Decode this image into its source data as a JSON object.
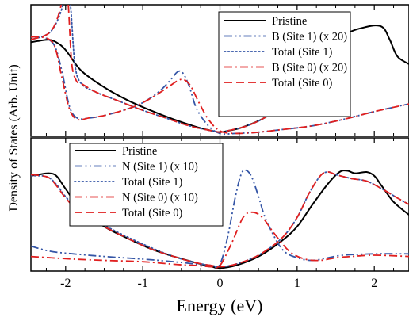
{
  "chart_data": [
    {
      "type": "line",
      "panel": "top",
      "xlim": [
        -2.45,
        2.45
      ],
      "ylim": [
        0,
        1
      ],
      "legend_position": "top-right",
      "series": [
        {
          "name": "Pristine",
          "color": "#000000",
          "dash": "solid",
          "x": [
            -2.45,
            -2.35,
            -2.22,
            -2.12,
            -2.0,
            -1.8,
            -1.5,
            -1.2,
            -0.9,
            -0.6,
            -0.3,
            -0.1,
            0.0,
            0.1,
            0.3,
            0.6,
            0.9,
            1.2,
            1.3,
            1.6,
            1.9,
            2.1,
            2.2,
            2.3,
            2.45
          ],
          "y": [
            0.72,
            0.73,
            0.74,
            0.72,
            0.66,
            0.5,
            0.37,
            0.27,
            0.19,
            0.12,
            0.06,
            0.03,
            0.02,
            0.03,
            0.06,
            0.14,
            0.28,
            0.48,
            0.57,
            0.77,
            0.84,
            0.84,
            0.74,
            0.61,
            0.55
          ]
        },
        {
          "name": "B (Site 1) (x 20)",
          "color": "#3455a6",
          "dash": "dashdotdot",
          "x": [
            -2.45,
            -2.3,
            -2.15,
            -2.05,
            -1.95,
            -1.85,
            -1.7,
            -1.5,
            -1.2,
            -1.0,
            -0.8,
            -0.65,
            -0.55,
            -0.48,
            -0.4,
            -0.3,
            -0.15,
            0.0,
            0.2,
            0.5,
            0.8,
            1.2,
            1.6,
            2.0,
            2.45
          ],
          "y": [
            0.76,
            0.76,
            0.7,
            0.5,
            0.22,
            0.13,
            0.13,
            0.15,
            0.2,
            0.25,
            0.33,
            0.42,
            0.49,
            0.48,
            0.38,
            0.2,
            0.07,
            0.01,
            0.01,
            0.02,
            0.04,
            0.07,
            0.12,
            0.18,
            0.24
          ]
        },
        {
          "name": "Total (Site 1)",
          "color": "#3455a6",
          "dash": "dotted",
          "x": [
            -2.45,
            -2.2,
            -2.05,
            -2.0,
            -1.97,
            -1.93,
            -1.88,
            -1.8,
            -1.6,
            -1.3,
            -1.0,
            -0.7,
            -0.4,
            -0.1,
            0.0,
            0.1,
            0.4,
            0.7,
            1.0,
            1.2
          ],
          "y": [
            0.74,
            0.8,
            0.98,
            1.2,
            1.2,
            0.96,
            0.55,
            0.4,
            0.33,
            0.26,
            0.19,
            0.13,
            0.07,
            0.03,
            0.02,
            0.03,
            0.08,
            0.18,
            0.34,
            0.48
          ]
        },
        {
          "name": "B (Site 0) (x 20)",
          "color": "#e01f1f",
          "dash": "dashdot",
          "x": [
            -2.45,
            -2.3,
            -2.15,
            -2.05,
            -1.95,
            -1.85,
            -1.7,
            -1.5,
            -1.2,
            -1.0,
            -0.8,
            -0.65,
            -0.55,
            -0.47,
            -0.38,
            -0.28,
            -0.15,
            0.0,
            0.2,
            0.5,
            0.8,
            1.2,
            1.6,
            2.0,
            2.45
          ],
          "y": [
            0.76,
            0.76,
            0.7,
            0.45,
            0.2,
            0.12,
            0.13,
            0.15,
            0.2,
            0.25,
            0.32,
            0.38,
            0.42,
            0.43,
            0.38,
            0.26,
            0.12,
            0.03,
            0.01,
            0.02,
            0.04,
            0.07,
            0.12,
            0.18,
            0.24
          ]
        },
        {
          "name": "Total (Site 0)",
          "color": "#e01f1f",
          "dash": "dashed",
          "x": [
            -2.45,
            -2.2,
            -2.07,
            -2.02,
            -1.99,
            -1.96,
            -1.92,
            -1.86,
            -1.8,
            -1.6,
            -1.3,
            -1.0,
            -0.7,
            -0.4,
            -0.1,
            0.0,
            0.1,
            0.4,
            0.7,
            1.0,
            1.2
          ],
          "y": [
            0.74,
            0.8,
            0.98,
            1.2,
            1.2,
            0.96,
            0.55,
            0.42,
            0.4,
            0.33,
            0.26,
            0.19,
            0.13,
            0.07,
            0.03,
            0.02,
            0.03,
            0.08,
            0.18,
            0.34,
            0.48
          ]
        }
      ]
    },
    {
      "type": "line",
      "panel": "bottom",
      "xlabel": "Energy (eV)",
      "ylabel": "Density of States (Arb. Unit)",
      "xlim": [
        -2.45,
        2.45
      ],
      "ylim": [
        0,
        1
      ],
      "xticks": [
        -2,
        -1,
        0,
        1,
        2
      ],
      "legend_position": "top-left",
      "series": [
        {
          "name": "Pristine",
          "color": "#000000",
          "dash": "solid",
          "x": [
            -2.45,
            -2.35,
            -2.22,
            -2.12,
            -2.0,
            -1.8,
            -1.5,
            -1.2,
            -0.9,
            -0.6,
            -0.3,
            -0.1,
            0.0,
            0.2,
            0.5,
            0.8,
            1.0,
            1.2,
            1.4,
            1.55,
            1.65,
            1.75,
            1.9,
            2.0,
            2.1,
            2.25,
            2.45
          ],
          "y": [
            0.72,
            0.73,
            0.74,
            0.72,
            0.62,
            0.46,
            0.33,
            0.24,
            0.16,
            0.1,
            0.05,
            0.02,
            0.01,
            0.03,
            0.1,
            0.22,
            0.33,
            0.5,
            0.66,
            0.75,
            0.76,
            0.74,
            0.75,
            0.72,
            0.64,
            0.52,
            0.42
          ]
        },
        {
          "name": "N (Site 1) (x 10)",
          "color": "#3455a6",
          "dash": "dashdotdot",
          "x": [
            -2.45,
            -2.2,
            -1.9,
            -1.5,
            -1.0,
            -0.6,
            -0.3,
            -0.1,
            0.0,
            0.1,
            0.2,
            0.28,
            0.35,
            0.42,
            0.5,
            0.6,
            0.8,
            1.0,
            1.2,
            1.4,
            1.6,
            2.0,
            2.45
          ],
          "y": [
            0.18,
            0.14,
            0.12,
            0.1,
            0.08,
            0.06,
            0.04,
            0.02,
            0.04,
            0.25,
            0.56,
            0.74,
            0.76,
            0.7,
            0.56,
            0.38,
            0.16,
            0.09,
            0.07,
            0.09,
            0.11,
            0.12,
            0.12
          ]
        },
        {
          "name": "Total (Site 1)",
          "color": "#3455a6",
          "dash": "dotted",
          "x": [
            -2.45,
            -2.3,
            -2.2,
            -2.1,
            -2.0,
            -1.8,
            -1.5,
            -1.2,
            -0.9,
            -0.6,
            -0.3,
            -0.1,
            0.0,
            0.2,
            0.5,
            0.8,
            1.0,
            1.15,
            1.3,
            1.4,
            1.5,
            1.7,
            1.9,
            2.1,
            2.3,
            2.45
          ],
          "y": [
            0.72,
            0.72,
            0.7,
            0.64,
            0.56,
            0.44,
            0.34,
            0.25,
            0.17,
            0.1,
            0.05,
            0.03,
            0.02,
            0.04,
            0.11,
            0.24,
            0.4,
            0.58,
            0.72,
            0.75,
            0.73,
            0.7,
            0.68,
            0.62,
            0.55,
            0.5
          ]
        },
        {
          "name": "N (Site 0) (x 10)",
          "color": "#e01f1f",
          "dash": "dashdot",
          "x": [
            -2.45,
            -2.2,
            -1.9,
            -1.5,
            -1.0,
            -0.6,
            -0.3,
            -0.1,
            0.0,
            0.15,
            0.3,
            0.42,
            0.55,
            0.7,
            0.9,
            1.1,
            1.3,
            1.5,
            1.7,
            2.0,
            2.45
          ],
          "y": [
            0.1,
            0.09,
            0.08,
            0.07,
            0.06,
            0.04,
            0.03,
            0.02,
            0.03,
            0.2,
            0.4,
            0.44,
            0.4,
            0.28,
            0.14,
            0.08,
            0.07,
            0.09,
            0.1,
            0.11,
            0.1
          ]
        },
        {
          "name": "Total (Site 0)",
          "color": "#e01f1f",
          "dash": "dashed",
          "x": [
            -2.45,
            -2.3,
            -2.2,
            -2.1,
            -2.0,
            -1.8,
            -1.5,
            -1.2,
            -0.9,
            -0.6,
            -0.3,
            -0.1,
            0.0,
            0.2,
            0.5,
            0.8,
            1.0,
            1.15,
            1.3,
            1.4,
            1.5,
            1.7,
            1.9,
            2.1,
            2.3,
            2.45
          ],
          "y": [
            0.73,
            0.72,
            0.7,
            0.63,
            0.55,
            0.43,
            0.33,
            0.24,
            0.16,
            0.1,
            0.05,
            0.03,
            0.02,
            0.04,
            0.11,
            0.24,
            0.4,
            0.58,
            0.72,
            0.75,
            0.73,
            0.7,
            0.68,
            0.62,
            0.55,
            0.5
          ]
        }
      ]
    }
  ]
}
